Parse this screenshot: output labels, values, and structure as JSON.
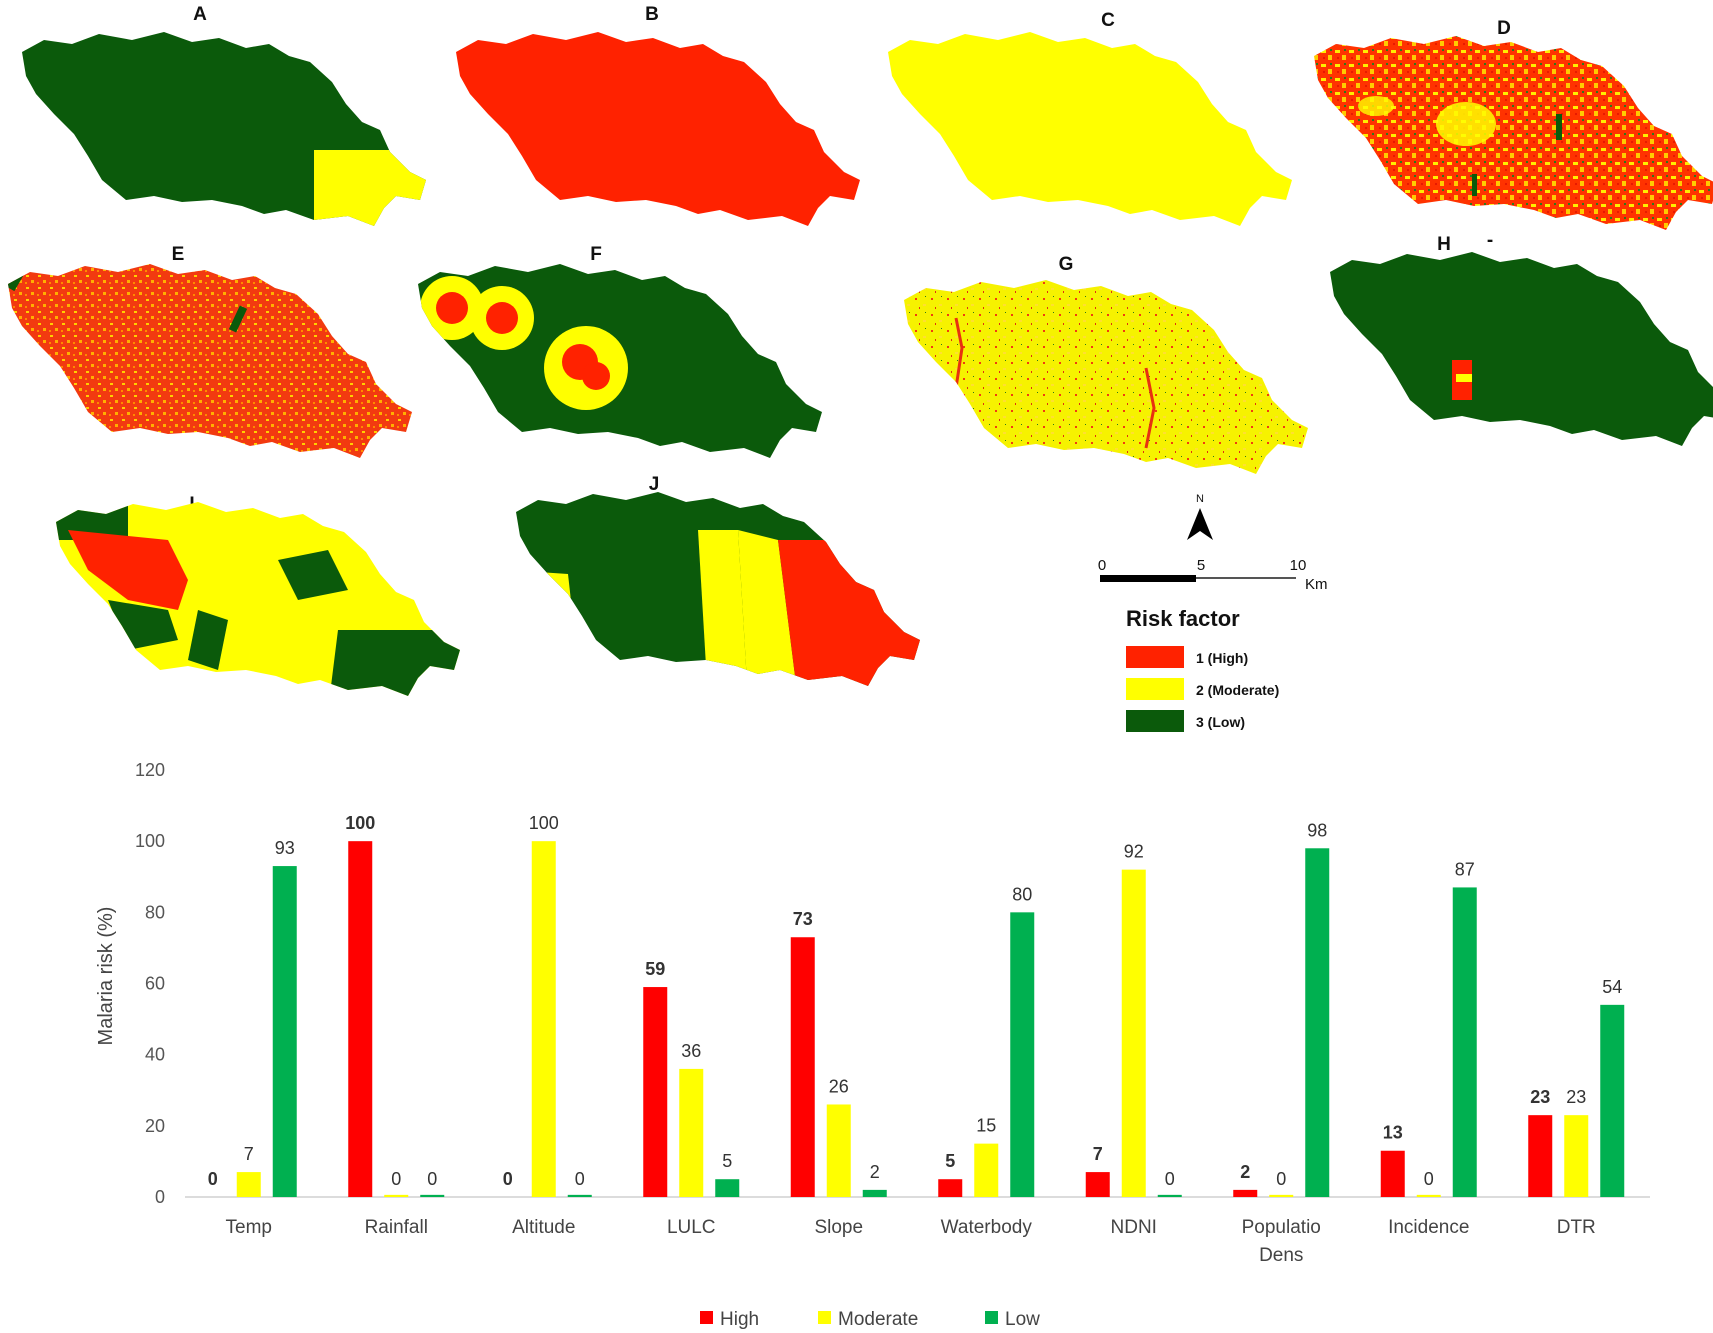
{
  "colors": {
    "high": "#ff0000",
    "moderate": "#ffff00",
    "low": "#00b050",
    "map_high": "#ff2200",
    "map_moderate": "#ffff00",
    "map_low": "#0b5a0b"
  },
  "maps": {
    "panels": [
      {
        "letter": "A",
        "style": "low-with-moderate-tail"
      },
      {
        "letter": "B",
        "style": "all-high"
      },
      {
        "letter": "C",
        "style": "all-moderate"
      },
      {
        "letter": "D",
        "style": "high-moderate-speckle"
      },
      {
        "letter": "E",
        "style": "high-speckle"
      },
      {
        "letter": "F",
        "style": "low-with-buffer-rings"
      },
      {
        "letter": "G",
        "style": "moderate-speckle"
      },
      {
        "letter": "H",
        "style": "low-with-central-patch"
      },
      {
        "letter": "I",
        "style": "zoned-mixed"
      },
      {
        "letter": "J",
        "style": "vertical-bands"
      }
    ],
    "h_mark": "-",
    "north_label": "N",
    "scale": {
      "ticks": [
        "0",
        "5",
        "10"
      ],
      "unit": "Km"
    },
    "legend": {
      "title": "Risk factor",
      "items": [
        {
          "label": "1  (High)",
          "color": "#ff2200"
        },
        {
          "label": "2 (Moderate)",
          "color": "#ffff00"
        },
        {
          "label": "3 (Low)",
          "color": "#0b5a0b"
        }
      ]
    }
  },
  "chart_data": {
    "type": "bar",
    "ylabel": "Malaria risk (%)",
    "ylim": [
      0,
      120
    ],
    "yticks": [
      0,
      20,
      40,
      60,
      80,
      100,
      120
    ],
    "grid": false,
    "legend_position": "bottom",
    "categories": [
      "Temp",
      "Rainfall",
      "Altitude",
      "LULC",
      "Slope",
      "Waterbody",
      "NDNI",
      "Populatio Dens",
      "Incidence",
      "DTR"
    ],
    "category_lines": [
      [
        "Temp"
      ],
      [
        "Rainfall"
      ],
      [
        "Altitude"
      ],
      [
        "LULC"
      ],
      [
        "Slope"
      ],
      [
        "Waterbody"
      ],
      [
        "NDNI"
      ],
      [
        "Populatio",
        "Dens"
      ],
      [
        "Incidence"
      ],
      [
        "DTR"
      ]
    ],
    "series": [
      {
        "name": "High",
        "color": "#ff0000",
        "values": [
          0,
          100,
          0,
          59,
          73,
          5,
          7,
          2,
          13,
          23
        ]
      },
      {
        "name": "Moderate",
        "color": "#ffff00",
        "values": [
          7,
          0,
          100,
          36,
          26,
          15,
          92,
          0,
          0,
          23
        ]
      },
      {
        "name": "Low",
        "color": "#00b050",
        "values": [
          93,
          0,
          0,
          5,
          2,
          80,
          0,
          98,
          87,
          54
        ]
      }
    ]
  }
}
